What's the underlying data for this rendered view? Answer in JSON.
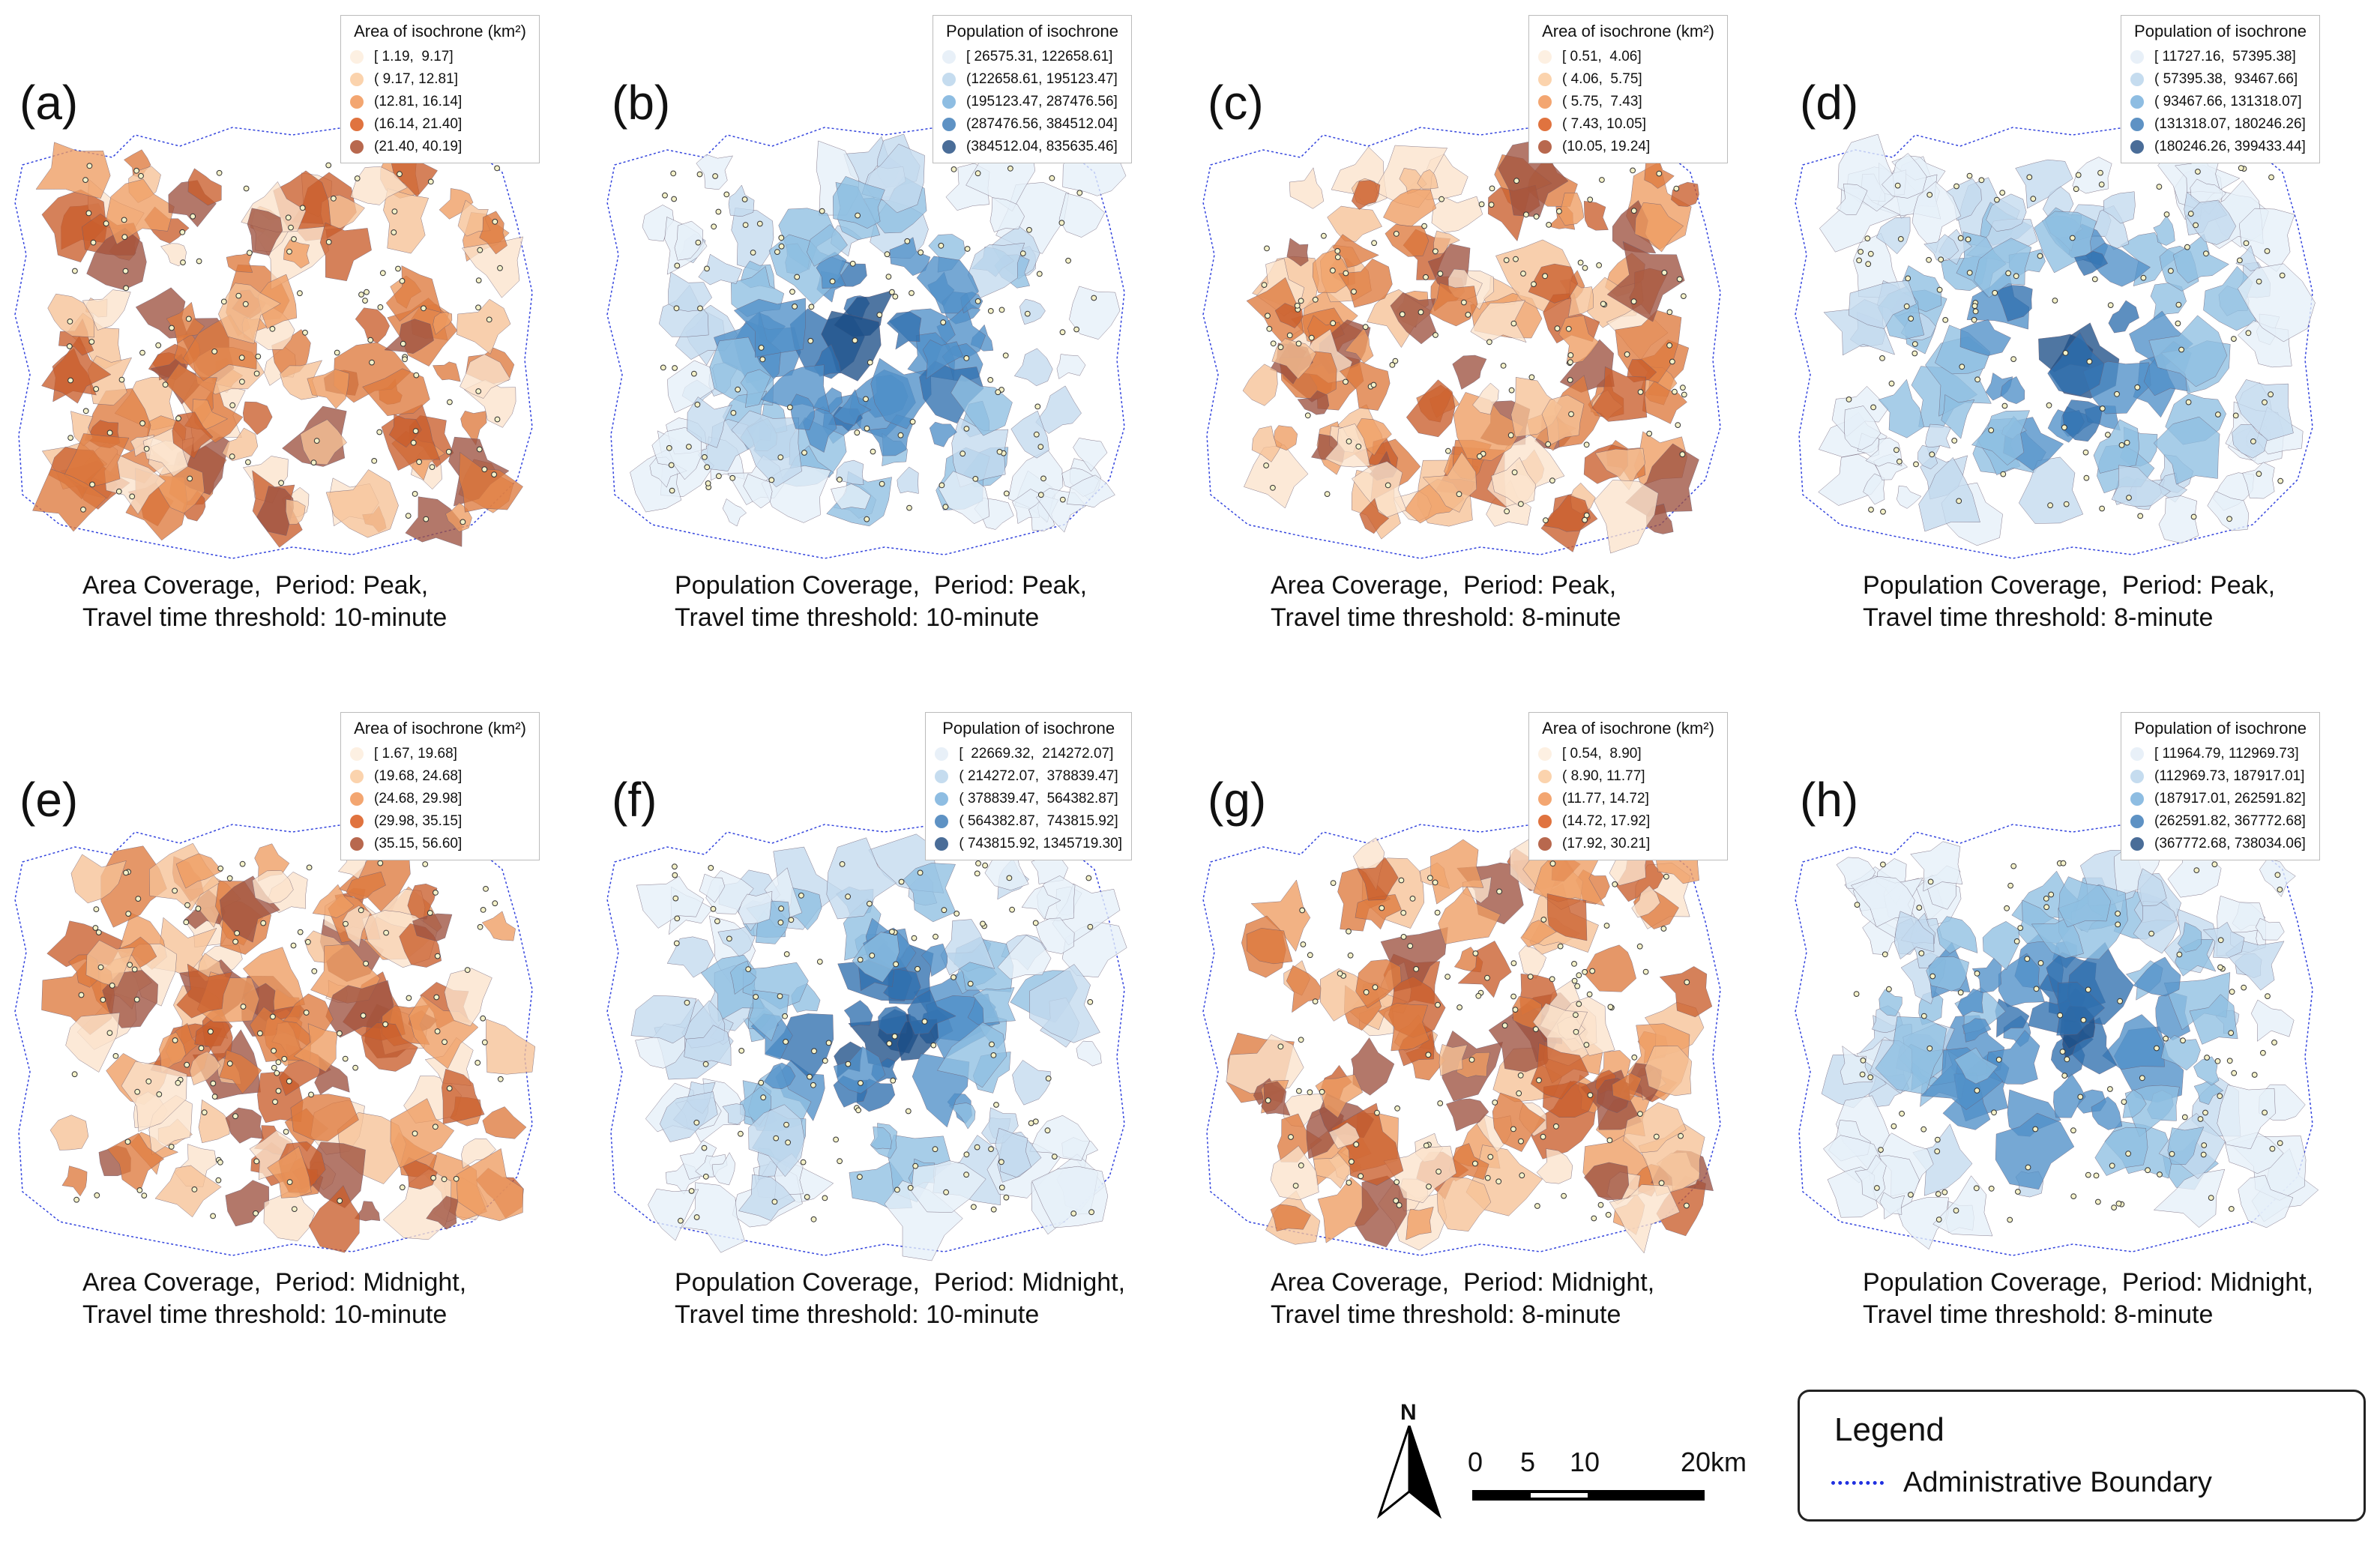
{
  "panels": [
    {
      "label": "(a)",
      "legend_title": "Area of isochrone (km²)",
      "ramp": "orange",
      "ranges": [
        "[ 1.19,  9.17]",
        "( 9.17, 12.81]",
        "(12.81, 16.14]",
        "(16.14, 21.40]",
        "(21.40, 40.19]"
      ],
      "caption1": "Area Coverage,  Period: Peak,",
      "caption2": "Travel time threshold: 10-minute"
    },
    {
      "label": "(b)",
      "legend_title": "Population of isochrone",
      "ramp": "blue",
      "ranges": [
        "[ 26575.31, 122658.61]",
        "(122658.61, 195123.47]",
        "(195123.47, 287476.56]",
        "(287476.56, 384512.04]",
        "(384512.04, 835635.46]"
      ],
      "caption1": "Population Coverage,  Period: Peak,",
      "caption2": "Travel time threshold: 10-minute"
    },
    {
      "label": "(c)",
      "legend_title": "Area of isochrone (km²)",
      "ramp": "orange",
      "ranges": [
        "[ 0.51,  4.06]",
        "( 4.06,  5.75]",
        "( 5.75,  7.43]",
        "( 7.43, 10.05]",
        "(10.05, 19.24]"
      ],
      "caption1": "Area Coverage,  Period: Peak,",
      "caption2": "Travel time threshold: 8-minute"
    },
    {
      "label": "(d)",
      "legend_title": "Population of isochrone",
      "ramp": "blue",
      "ranges": [
        "[ 11727.16,  57395.38]",
        "( 57395.38,  93467.66]",
        "( 93467.66, 131318.07]",
        "(131318.07, 180246.26]",
        "(180246.26, 399433.44]"
      ],
      "caption1": "Population Coverage,  Period: Peak,",
      "caption2": "Travel time threshold: 8-minute"
    },
    {
      "label": "(e)",
      "legend_title": "Area of isochrone (km²)",
      "ramp": "orange",
      "ranges": [
        "[ 1.67, 19.68]",
        "(19.68, 24.68]",
        "(24.68, 29.98]",
        "(29.98, 35.15]",
        "(35.15, 56.60]"
      ],
      "caption1": "Area Coverage,  Period: Midnight,",
      "caption2": "Travel time threshold: 10-minute"
    },
    {
      "label": "(f)",
      "legend_title": "Population of isochrone",
      "ramp": "blue",
      "ranges": [
        "[  22669.32,  214272.07]",
        "( 214272.07,  378839.47]",
        "( 378839.47,  564382.87]",
        "( 564382.87,  743815.92]",
        "( 743815.92, 1345719.30]"
      ],
      "caption1": "Population Coverage,  Period: Midnight,",
      "caption2": "Travel time threshold: 10-minute"
    },
    {
      "label": "(g)",
      "legend_title": "Area of isochrone (km²)",
      "ramp": "orange",
      "ranges": [
        "[ 0.54,  8.90]",
        "( 8.90, 11.77]",
        "(11.77, 14.72]",
        "(14.72, 17.92]",
        "(17.92, 30.21]"
      ],
      "caption1": "Area Coverage,  Period: Midnight,",
      "caption2": "Travel time threshold: 8-minute"
    },
    {
      "label": "(h)",
      "legend_title": "Population of isochrone",
      "ramp": "blue",
      "ranges": [
        "[ 11964.79, 112969.73]",
        "(112969.73, 187917.01]",
        "(187917.01, 262591.82]",
        "(262591.82, 367772.68]",
        "(367772.68, 738034.06]"
      ],
      "caption1": "Population Coverage,  Period: Midnight,",
      "caption2": "Travel time threshold: 8-minute"
    }
  ],
  "colors": {
    "orange": [
      "#fdf0e2",
      "#fbd3ad",
      "#f3a671",
      "#e0733f",
      "#b8684e"
    ],
    "blue": [
      "#e8f0f8",
      "#c5dcef",
      "#8ebde2",
      "#5e92c4",
      "#4a6d98"
    ],
    "orange_fill": [
      "#fbe3cc",
      "#f6c196",
      "#ee9c62",
      "#de7a3e",
      "#c95e2c",
      "#9e5240"
    ],
    "blue_fill": [
      "#e6eff8",
      "#c3daee",
      "#8ebfe2",
      "#4f90c8",
      "#2f6fae",
      "#1e4f88"
    ],
    "boundary": "#3344dd"
  },
  "north": {
    "letter": "N"
  },
  "scale": {
    "labels": [
      "0",
      "5",
      "10",
      "20km"
    ]
  },
  "legend": {
    "title": "Legend",
    "item": "Administrative Boundary"
  }
}
